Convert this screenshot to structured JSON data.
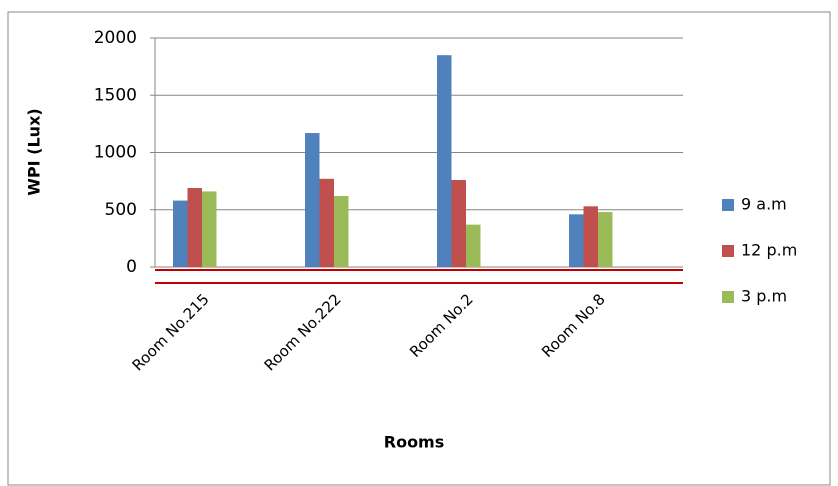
{
  "chart_data": {
    "type": "bar",
    "y_label": "WPI (Lux)",
    "x_label": "Rooms",
    "categories": [
      "Room No.215",
      "Room No.222",
      "Room No.2",
      "Room No.8"
    ],
    "series": [
      {
        "name": "9 a.m",
        "color": "#4f81bd",
        "values": [
          580,
          1170,
          1850,
          460
        ]
      },
      {
        "name": "12 p.m",
        "color": "#c0504d",
        "values": [
          690,
          770,
          760,
          530
        ]
      },
      {
        "name": "3 p.m",
        "color": "#9bbb59",
        "values": [
          660,
          620,
          370,
          480
        ]
      }
    ],
    "ylim": [
      0,
      2000
    ],
    "yticks": [
      0,
      500,
      1000,
      1500,
      2000
    ],
    "grid": true,
    "legend": "right"
  }
}
